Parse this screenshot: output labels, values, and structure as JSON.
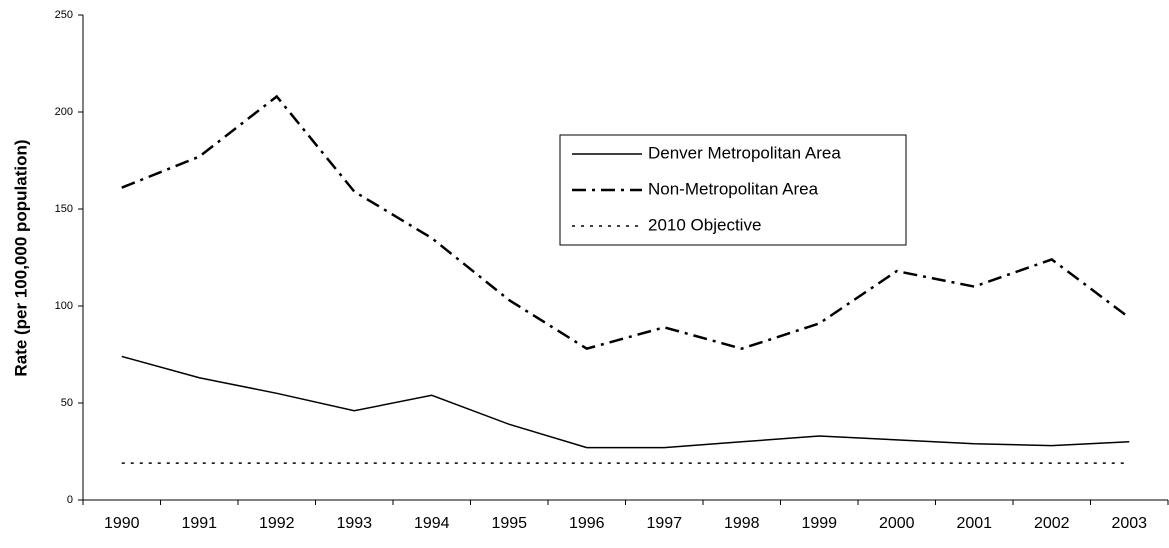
{
  "chart_data": {
    "type": "line",
    "y_label": "Rate (per 100,000 population)",
    "categories": [
      "1990",
      "1991",
      "1992",
      "1993",
      "1994",
      "1995",
      "1996",
      "1997",
      "1998",
      "1999",
      "2000",
      "2001",
      "2002",
      "2003"
    ],
    "series": [
      {
        "name": "Denver Metropolitan Area",
        "color": "#000000",
        "dash": "solid",
        "values": [
          74,
          63,
          55,
          46,
          54,
          39,
          27,
          27,
          30,
          33,
          31,
          29,
          28,
          30
        ]
      },
      {
        "name": "Non-Metropolitan Area",
        "color": "#000000",
        "dash": "dashdot",
        "values": [
          161,
          177,
          208,
          159,
          135,
          103,
          78,
          89,
          78,
          91,
          118,
          110,
          124,
          94
        ]
      },
      {
        "name": "2010 Objective",
        "color": "#000000",
        "dash": "dotted",
        "values": [
          19,
          19,
          19,
          19,
          19,
          19,
          19,
          19,
          19,
          19,
          19,
          19,
          19,
          19
        ]
      }
    ],
    "ylim": [
      0,
      250
    ],
    "yticks": [
      0,
      50,
      100,
      150,
      200,
      250
    ],
    "grid": false,
    "legend": "upper-center"
  }
}
